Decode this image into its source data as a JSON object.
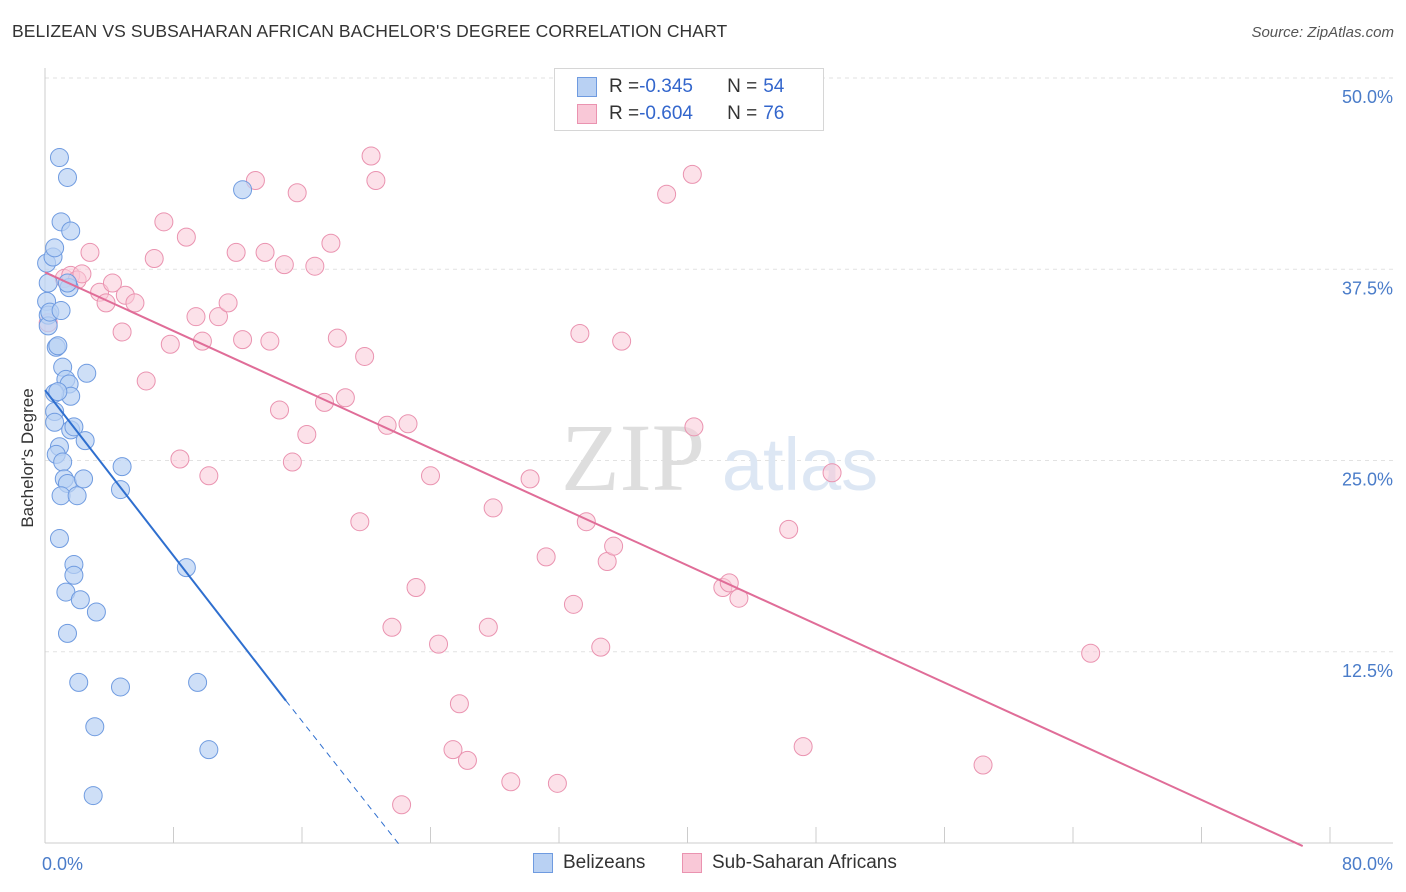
{
  "title": "BELIZEAN VS SUBSAHARAN AFRICAN BACHELOR'S DEGREE CORRELATION CHART",
  "source": "Source: ZipAtlas.com",
  "watermark": {
    "zip": "ZIP",
    "atlas": "atlas"
  },
  "legend": {
    "r_label": "R = ",
    "n_label": "N = ",
    "series": [
      {
        "name": "Belizeans",
        "r": "-0.345",
        "n": "54"
      },
      {
        "name": "Sub-Saharan Africans",
        "r": "-0.604",
        "n": "76"
      }
    ]
  },
  "colors": {
    "belizean_fill": "#b9d1f3",
    "belizean_stroke": "#6f9be0",
    "belizean_line": "#2f6fcf",
    "ssa_fill": "#f9c8d7",
    "ssa_stroke": "#ea93b0",
    "ssa_line": "#e06d98",
    "tick": "#4a7cc9",
    "grid": "#e2e2e2"
  },
  "chart_data": {
    "type": "scatter",
    "title": "BELIZEAN VS SUBSAHARAN AFRICAN BACHELOR'S DEGREE CORRELATION CHART",
    "xlabel": "",
    "ylabel": "Bachelor's Degree",
    "xlim": [
      0,
      80
    ],
    "ylim": [
      0,
      50
    ],
    "x_tick_labels": [
      "0.0%",
      "80.0%"
    ],
    "y_ticks": [
      12.5,
      25.0,
      37.5,
      50.0
    ],
    "y_tick_labels": [
      "12.5%",
      "25.0%",
      "37.5%",
      "50.0%"
    ],
    "grid": true,
    "series": [
      {
        "name": "Belizeans",
        "r": -0.345,
        "n": 54,
        "points": [
          [
            0.1,
            37.9
          ],
          [
            0.2,
            36.6
          ],
          [
            0.1,
            35.4
          ],
          [
            0.2,
            34.5
          ],
          [
            0.2,
            33.8
          ],
          [
            0.3,
            34.7
          ],
          [
            0.5,
            38.3
          ],
          [
            0.6,
            38.9
          ],
          [
            0.9,
            44.8
          ],
          [
            1.0,
            40.6
          ],
          [
            1.4,
            43.5
          ],
          [
            1.6,
            40.0
          ],
          [
            1.5,
            36.3
          ],
          [
            1.4,
            36.6
          ],
          [
            0.7,
            32.4
          ],
          [
            0.8,
            32.5
          ],
          [
            1.0,
            34.8
          ],
          [
            1.1,
            31.1
          ],
          [
            1.3,
            30.3
          ],
          [
            1.5,
            30.0
          ],
          [
            1.6,
            29.2
          ],
          [
            0.6,
            29.4
          ],
          [
            0.8,
            29.5
          ],
          [
            0.6,
            28.2
          ],
          [
            0.6,
            27.5
          ],
          [
            1.6,
            27.0
          ],
          [
            1.8,
            27.2
          ],
          [
            2.5,
            26.3
          ],
          [
            2.6,
            30.7
          ],
          [
            0.9,
            25.9
          ],
          [
            0.7,
            25.4
          ],
          [
            1.1,
            24.9
          ],
          [
            1.2,
            23.8
          ],
          [
            1.4,
            23.5
          ],
          [
            2.4,
            23.8
          ],
          [
            1.0,
            22.7
          ],
          [
            2.0,
            22.7
          ],
          [
            4.8,
            24.6
          ],
          [
            4.7,
            23.1
          ],
          [
            0.9,
            19.9
          ],
          [
            1.8,
            18.2
          ],
          [
            1.8,
            17.5
          ],
          [
            1.3,
            16.4
          ],
          [
            2.2,
            15.9
          ],
          [
            3.2,
            15.1
          ],
          [
            1.4,
            13.7
          ],
          [
            8.8,
            18.0
          ],
          [
            2.1,
            10.5
          ],
          [
            4.7,
            10.2
          ],
          [
            9.5,
            10.5
          ],
          [
            3.1,
            7.6
          ],
          [
            10.2,
            6.1
          ],
          [
            3.0,
            3.1
          ],
          [
            12.3,
            42.7
          ]
        ],
        "trend": {
          "x": [
            0.0,
            15.0
          ],
          "y": [
            29.6,
            9.3
          ],
          "dashed_extension": {
            "x": [
              15.0,
              22.2
            ],
            "y": [
              9.3,
              -0.3
            ]
          }
        }
      },
      {
        "name": "Sub-Saharan Africans",
        "r": -0.604,
        "n": 76,
        "points": [
          [
            0.2,
            34.0
          ],
          [
            1.2,
            36.9
          ],
          [
            1.6,
            37.1
          ],
          [
            2.0,
            36.8
          ],
          [
            2.3,
            37.2
          ],
          [
            2.8,
            38.6
          ],
          [
            3.4,
            36.0
          ],
          [
            3.8,
            35.3
          ],
          [
            4.2,
            36.6
          ],
          [
            5.0,
            35.8
          ],
          [
            5.6,
            35.3
          ],
          [
            4.8,
            33.4
          ],
          [
            6.3,
            30.2
          ],
          [
            6.8,
            38.2
          ],
          [
            7.4,
            40.6
          ],
          [
            7.8,
            32.6
          ],
          [
            8.4,
            25.1
          ],
          [
            8.8,
            39.6
          ],
          [
            9.4,
            34.4
          ],
          [
            9.8,
            32.8
          ],
          [
            10.2,
            24.0
          ],
          [
            10.8,
            34.4
          ],
          [
            11.4,
            35.3
          ],
          [
            11.9,
            38.6
          ],
          [
            12.3,
            32.9
          ],
          [
            13.1,
            43.3
          ],
          [
            13.7,
            38.6
          ],
          [
            14.0,
            32.8
          ],
          [
            14.6,
            28.3
          ],
          [
            14.9,
            37.8
          ],
          [
            15.4,
            24.9
          ],
          [
            15.7,
            42.5
          ],
          [
            16.3,
            26.7
          ],
          [
            16.8,
            37.7
          ],
          [
            17.4,
            28.8
          ],
          [
            17.8,
            39.2
          ],
          [
            18.2,
            33.0
          ],
          [
            18.7,
            29.1
          ],
          [
            19.6,
            21.0
          ],
          [
            19.9,
            31.8
          ],
          [
            20.3,
            44.9
          ],
          [
            20.6,
            43.3
          ],
          [
            21.3,
            27.3
          ],
          [
            21.6,
            14.1
          ],
          [
            22.2,
            2.5
          ],
          [
            22.6,
            27.4
          ],
          [
            23.1,
            16.7
          ],
          [
            24.0,
            24.0
          ],
          [
            24.5,
            13.0
          ],
          [
            25.4,
            6.1
          ],
          [
            25.8,
            9.1
          ],
          [
            26.3,
            5.4
          ],
          [
            27.6,
            14.1
          ],
          [
            27.9,
            21.9
          ],
          [
            29.0,
            4.0
          ],
          [
            30.2,
            23.8
          ],
          [
            31.2,
            18.7
          ],
          [
            31.9,
            3.9
          ],
          [
            32.9,
            15.6
          ],
          [
            33.3,
            33.3
          ],
          [
            33.7,
            21.0
          ],
          [
            34.6,
            12.8
          ],
          [
            35.0,
            18.4
          ],
          [
            35.4,
            19.4
          ],
          [
            35.9,
            32.8
          ],
          [
            38.7,
            42.4
          ],
          [
            40.3,
            43.7
          ],
          [
            40.4,
            27.2
          ],
          [
            42.2,
            16.7
          ],
          [
            42.6,
            17.0
          ],
          [
            43.2,
            16.0
          ],
          [
            46.3,
            20.5
          ],
          [
            47.2,
            6.3
          ],
          [
            49.0,
            24.2
          ],
          [
            58.4,
            5.1
          ],
          [
            65.1,
            12.4
          ]
        ],
        "trend": {
          "x": [
            0.0,
            78.3
          ],
          "y": [
            37.3,
            -0.2
          ]
        }
      }
    ]
  }
}
